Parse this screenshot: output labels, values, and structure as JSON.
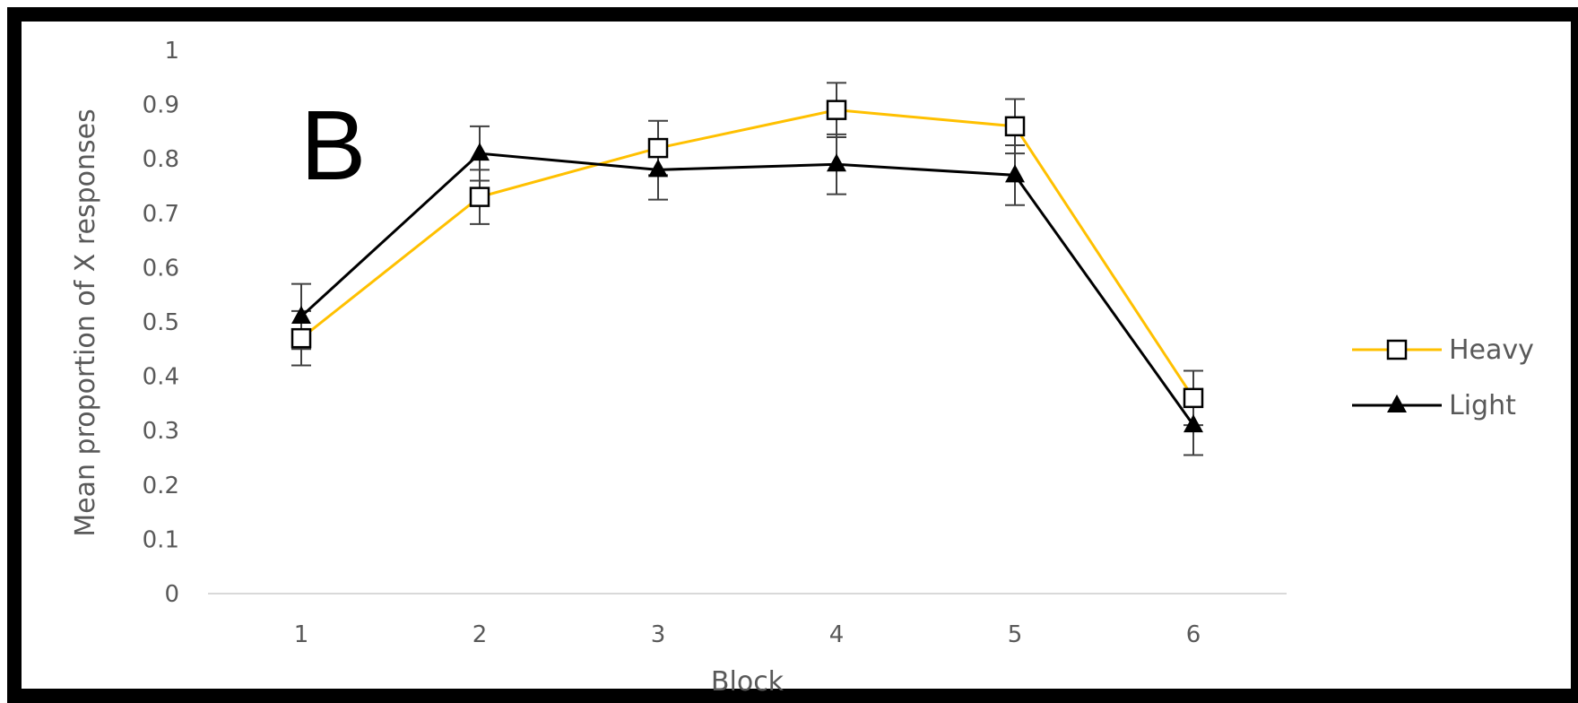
{
  "panel_label": "B",
  "colors": {
    "heavy": "#FFC000",
    "light": "#000000",
    "axis_text": "#595959",
    "axis_line": "#D9D9D9",
    "error_bar": "#404040"
  },
  "chart_data": {
    "type": "line",
    "title": "",
    "xlabel": "Block",
    "ylabel": "Mean proportion of X responses",
    "categories": [
      "1",
      "2",
      "3",
      "4",
      "5",
      "6"
    ],
    "ylim": [
      0,
      1
    ],
    "yticks": [
      "0",
      "0.1",
      "0.2",
      "0.3",
      "0.4",
      "0.5",
      "0.6",
      "0.7",
      "0.8",
      "0.9",
      "1"
    ],
    "grid": false,
    "legend_position": "right",
    "series": [
      {
        "name": "Heavy",
        "marker": "open-square",
        "color": "#FFC000",
        "values": [
          0.47,
          0.73,
          0.82,
          0.89,
          0.86,
          0.36
        ],
        "error": [
          0.05,
          0.05,
          0.05,
          0.05,
          0.05,
          0.05
        ]
      },
      {
        "name": "Light",
        "marker": "filled-triangle",
        "color": "#000000",
        "values": [
          0.51,
          0.81,
          0.78,
          0.79,
          0.77,
          0.31
        ],
        "error": [
          0.06,
          0.05,
          0.055,
          0.055,
          0.055,
          0.055
        ]
      }
    ]
  }
}
